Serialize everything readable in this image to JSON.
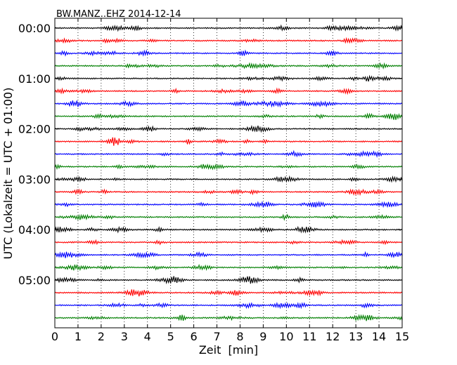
{
  "chart_data": {
    "type": "line",
    "title": "BW.MANZ..EHZ 2014-12-14",
    "xlabel": "Zeit  [min]",
    "ylabel": "UTC (Lokalzeit = UTC + 01:00)",
    "xlim": [
      0,
      15
    ],
    "xticks": [
      0,
      1,
      2,
      3,
      4,
      5,
      6,
      7,
      8,
      9,
      10,
      11,
      12,
      13,
      14,
      15
    ],
    "ytick_labels": [
      "00:00",
      "01:00",
      "02:00",
      "03:00",
      "04:00",
      "05:00"
    ],
    "grid": "vertical dotted lines at each minute",
    "trace_colors": [
      "#000000",
      "#ff0000",
      "#0000ff",
      "#007f00"
    ],
    "traces": [
      {
        "row": 0,
        "start": "00:00"
      },
      {
        "row": 1,
        "start": "00:15"
      },
      {
        "row": 2,
        "start": "00:30"
      },
      {
        "row": 3,
        "start": "00:45"
      },
      {
        "row": 4,
        "start": "01:00"
      },
      {
        "row": 5,
        "start": "01:15"
      },
      {
        "row": 6,
        "start": "01:30"
      },
      {
        "row": 7,
        "start": "01:45"
      },
      {
        "row": 8,
        "start": "02:00"
      },
      {
        "row": 9,
        "start": "02:15"
      },
      {
        "row": 10,
        "start": "02:30"
      },
      {
        "row": 11,
        "start": "02:45"
      },
      {
        "row": 12,
        "start": "03:00"
      },
      {
        "row": 13,
        "start": "03:15"
      },
      {
        "row": 14,
        "start": "03:30"
      },
      {
        "row": 15,
        "start": "03:45"
      },
      {
        "row": 16,
        "start": "04:00"
      },
      {
        "row": 17,
        "start": "04:15"
      },
      {
        "row": 18,
        "start": "04:30"
      },
      {
        "row": 19,
        "start": "04:45"
      },
      {
        "row": 20,
        "start": "05:00"
      },
      {
        "row": 21,
        "start": "05:15"
      },
      {
        "row": 22,
        "start": "05:30"
      },
      {
        "row": 23,
        "start": "05:45"
      }
    ]
  }
}
